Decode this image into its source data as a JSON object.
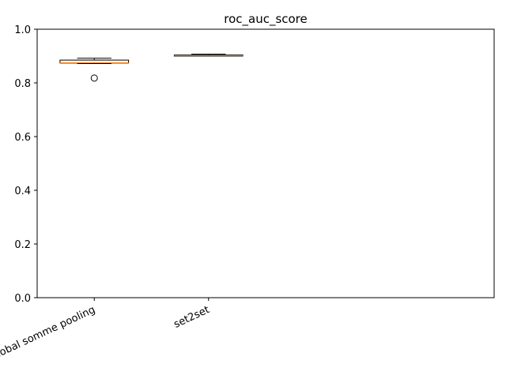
{
  "chart_data": {
    "type": "box",
    "title": "roc_auc_score",
    "xlabel": "",
    "ylabel": "",
    "ylim": [
      0.0,
      1.0
    ],
    "yticks": [
      0.0,
      0.2,
      0.4,
      0.6,
      0.8,
      1.0
    ],
    "ytick_labels": [
      "0.0",
      "0.2",
      "0.4",
      "0.6",
      "0.8",
      "1.0"
    ],
    "grid": false,
    "categories": [
      "Global somme pooling",
      "set2set"
    ],
    "boxes": [
      {
        "category": "Global somme pooling",
        "whisker_low": 0.872,
        "q1": 0.874,
        "median": 0.875,
        "q3": 0.885,
        "whisker_high": 0.892,
        "outliers": [
          0.818
        ]
      },
      {
        "category": "set2set",
        "whisker_low": 0.9,
        "q1": 0.9,
        "median": 0.902,
        "q3": 0.904,
        "whisker_high": 0.907,
        "outliers": []
      }
    ],
    "colors": {
      "box": "#000000",
      "median": "#ff7f0e",
      "axes": "#000000"
    }
  }
}
